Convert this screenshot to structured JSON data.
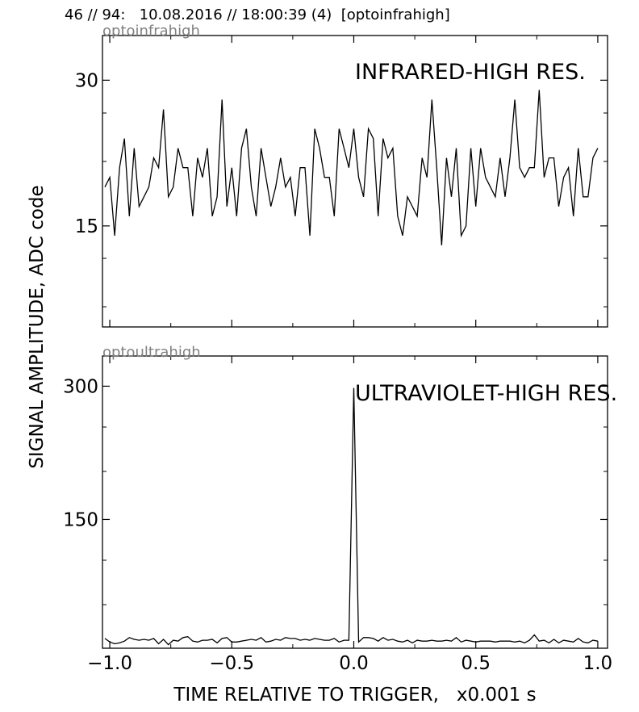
{
  "header": "46 // 94:   10.08.2016 // 18:00:39 (4)  [optoinfrahigh]",
  "ylabel": "SIGNAL AMPLITUDE,  ADC code",
  "xlabel": "TIME RELATIVE TO TRIGGER,   x0.001 s",
  "chart_data": [
    {
      "type": "line",
      "channel": "optoinfrahigh",
      "title": "INFRARED-HIGH RES.",
      "xlim": [
        -1.03,
        1.04
      ],
      "ylim": [
        4.6,
        34.6
      ],
      "x_tick_labels": [],
      "y_ticks": [
        30,
        15
      ],
      "y_tick_labels": [
        "30",
        "15"
      ],
      "x": [
        -1.02,
        -1.0,
        -0.98,
        -0.96,
        -0.94,
        -0.92,
        -0.9,
        -0.88,
        -0.86,
        -0.84,
        -0.82,
        -0.8,
        -0.78,
        -0.76,
        -0.74,
        -0.72,
        -0.7,
        -0.68,
        -0.66,
        -0.64,
        -0.62,
        -0.6,
        -0.58,
        -0.56,
        -0.54,
        -0.52,
        -0.5,
        -0.48,
        -0.46,
        -0.44,
        -0.42,
        -0.4,
        -0.38,
        -0.36,
        -0.34,
        -0.32,
        -0.3,
        -0.28,
        -0.26,
        -0.24,
        -0.22,
        -0.2,
        -0.18,
        -0.16,
        -0.14,
        -0.12,
        -0.1,
        -0.08,
        -0.06,
        -0.04,
        -0.02,
        0.0,
        0.02,
        0.04,
        0.06,
        0.08,
        0.1,
        0.12,
        0.14,
        0.16,
        0.18,
        0.2,
        0.22,
        0.24,
        0.26,
        0.28,
        0.3,
        0.32,
        0.34,
        0.36,
        0.38,
        0.4,
        0.42,
        0.44,
        0.46,
        0.48,
        0.5,
        0.52,
        0.54,
        0.56,
        0.58,
        0.6,
        0.62,
        0.64,
        0.66,
        0.68,
        0.7,
        0.72,
        0.74,
        0.76,
        0.78,
        0.8,
        0.82,
        0.84,
        0.86,
        0.88,
        0.9,
        0.92,
        0.94,
        0.96,
        0.98,
        1.0
      ],
      "values": [
        19,
        20,
        14,
        21,
        24,
        16,
        23,
        17,
        18,
        19,
        22,
        21,
        27,
        18,
        19,
        23,
        21,
        21,
        16,
        22,
        20,
        23,
        16,
        18,
        28,
        17,
        21,
        16,
        23,
        25,
        19,
        16,
        23,
        20,
        17,
        19,
        22,
        19,
        20,
        16,
        21,
        21,
        14,
        25,
        23,
        20,
        20,
        16,
        25,
        23,
        21,
        25,
        20,
        18,
        25,
        24,
        16,
        24,
        22,
        23,
        16,
        14,
        18,
        17,
        16,
        22,
        20,
        28,
        21,
        13,
        22,
        18,
        23,
        14,
        15,
        23,
        17,
        23,
        20,
        19,
        18,
        22,
        18,
        22,
        28,
        21,
        20,
        21,
        21,
        29,
        20,
        22,
        22,
        17,
        20,
        21,
        16,
        23,
        18,
        18,
        22,
        23
      ]
    },
    {
      "type": "line",
      "channel": "optoultrahigh",
      "title": "ULTRAVIOLET-HIGH RES.",
      "xlim": [
        -1.03,
        1.04
      ],
      "ylim": [
        5,
        334
      ],
      "x_ticks": [
        -1.0,
        -0.5,
        0.0,
        0.5,
        1.0
      ],
      "x_tick_labels": [
        "−1.0",
        "−0.5",
        "0.0",
        "0.5",
        "1.0"
      ],
      "y_ticks": [
        300,
        150
      ],
      "y_tick_labels": [
        "300",
        "150"
      ],
      "x": [
        -1.02,
        -1.0,
        -0.98,
        -0.96,
        -0.94,
        -0.92,
        -0.9,
        -0.88,
        -0.86,
        -0.84,
        -0.82,
        -0.8,
        -0.78,
        -0.76,
        -0.74,
        -0.72,
        -0.7,
        -0.68,
        -0.66,
        -0.64,
        -0.62,
        -0.6,
        -0.58,
        -0.56,
        -0.54,
        -0.52,
        -0.5,
        -0.48,
        -0.46,
        -0.44,
        -0.42,
        -0.4,
        -0.38,
        -0.36,
        -0.34,
        -0.32,
        -0.3,
        -0.28,
        -0.26,
        -0.24,
        -0.22,
        -0.2,
        -0.18,
        -0.16,
        -0.14,
        -0.12,
        -0.1,
        -0.08,
        -0.06,
        -0.04,
        -0.02,
        0.0,
        0.02,
        0.04,
        0.06,
        0.08,
        0.1,
        0.12,
        0.14,
        0.16,
        0.18,
        0.2,
        0.22,
        0.24,
        0.26,
        0.28,
        0.3,
        0.32,
        0.34,
        0.36,
        0.38,
        0.4,
        0.42,
        0.44,
        0.46,
        0.48,
        0.5,
        0.52,
        0.54,
        0.56,
        0.58,
        0.6,
        0.62,
        0.64,
        0.66,
        0.68,
        0.7,
        0.72,
        0.74,
        0.76,
        0.78,
        0.8,
        0.82,
        0.84,
        0.86,
        0.88,
        0.9,
        0.92,
        0.94,
        0.96,
        0.98,
        1.0
      ],
      "values": [
        16,
        12,
        10,
        11,
        13,
        17,
        15,
        14,
        15,
        14,
        16,
        10,
        15,
        9,
        14,
        13,
        17,
        18,
        13,
        12,
        14,
        14,
        15,
        11,
        16,
        17,
        12,
        12,
        13,
        14,
        15,
        14,
        17,
        12,
        13,
        15,
        14,
        17,
        16,
        16,
        14,
        15,
        14,
        16,
        15,
        14,
        14,
        16,
        12,
        14,
        14,
        298,
        12,
        17,
        17,
        16,
        13,
        17,
        14,
        15,
        13,
        12,
        14,
        11,
        14,
        13,
        13,
        14,
        13,
        13,
        14,
        13,
        17,
        12,
        14,
        13,
        12,
        13,
        13,
        13,
        12,
        13,
        13,
        13,
        12,
        13,
        11,
        14,
        20,
        13,
        14,
        11,
        15,
        11,
        14,
        13,
        12,
        16,
        12,
        11,
        14,
        13
      ]
    }
  ]
}
